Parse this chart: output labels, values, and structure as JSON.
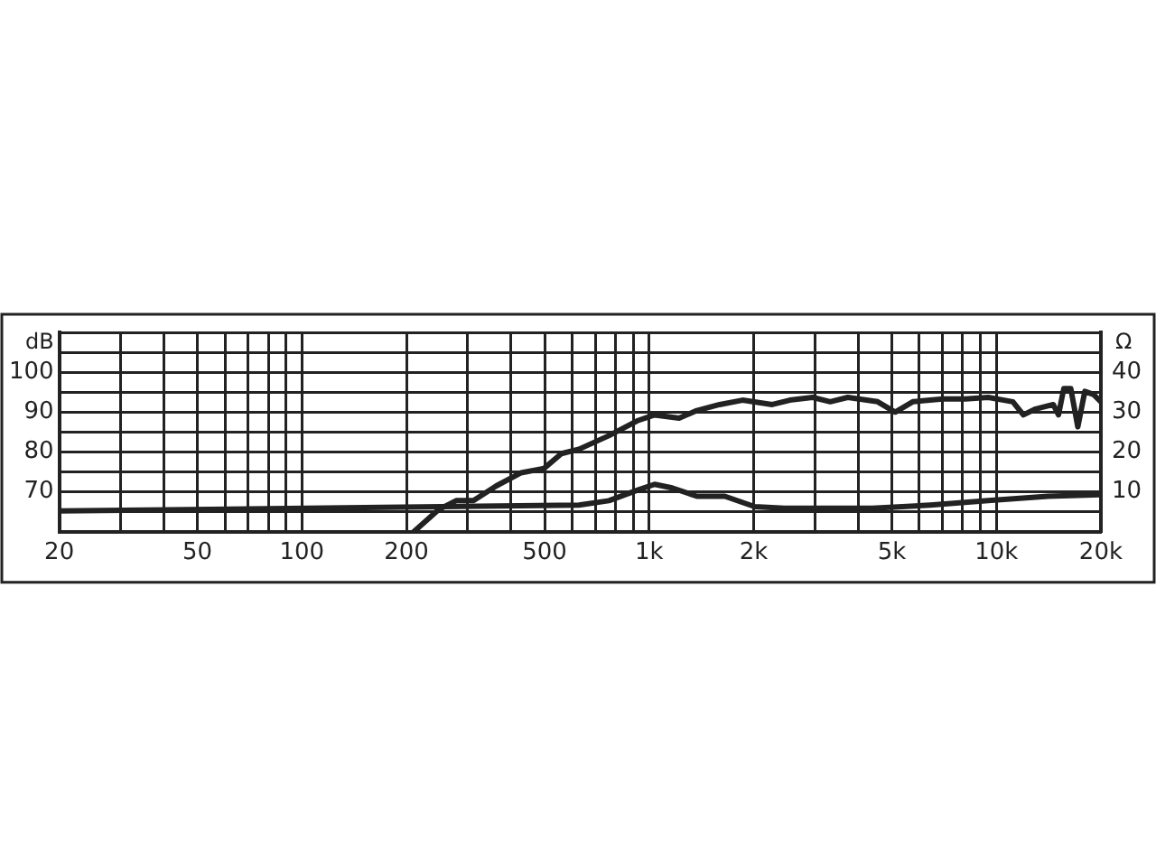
{
  "chart_data": {
    "type": "line",
    "ylabel": "dB",
    "y2label": "Ω",
    "log": "x",
    "grid": true,
    "legend": false,
    "marker": "none",
    "line_style": "solid",
    "xlim": [
      20,
      20000
    ],
    "xticks": [
      20,
      {
        "value": 30,
        "label": null
      },
      {
        "value": 40,
        "label": null
      },
      50,
      {
        "value": 60,
        "label": null
      },
      {
        "value": 70,
        "label": null
      },
      {
        "value": 80,
        "label": null
      },
      {
        "value": 90,
        "label": null
      },
      100,
      200,
      {
        "value": 300,
        "label": null
      },
      {
        "value": 400,
        "label": null
      },
      500,
      {
        "value": 600,
        "label": null
      },
      {
        "value": 700,
        "label": null
      },
      {
        "value": 800,
        "label": null
      },
      {
        "value": 900,
        "label": null
      },
      {
        "value": 1000,
        "label": "1k"
      },
      {
        "value": 2000,
        "label": "2k"
      },
      {
        "value": 3000,
        "label": null
      },
      {
        "value": 4000,
        "label": null
      },
      {
        "value": 5000,
        "label": "5k"
      },
      {
        "value": 6000,
        "label": null
      },
      {
        "value": 7000,
        "label": null
      },
      {
        "value": 8000,
        "label": null
      },
      {
        "value": 9000,
        "label": null
      },
      {
        "value": 10000,
        "label": "10k"
      },
      {
        "value": 20000,
        "label": "20k"
      }
    ],
    "ylim": [
      60,
      110
    ],
    "yticks": [
      {
        "value": 60,
        "label": null
      },
      {
        "value": 65,
        "label": null
      },
      70,
      {
        "value": 75,
        "label": null
      },
      80,
      {
        "value": 85,
        "label": null
      },
      90,
      {
        "value": 95,
        "label": null
      },
      100,
      {
        "value": 105,
        "label": null
      },
      {
        "value": 110,
        "label": null
      }
    ],
    "y2lim": [
      0,
      50
    ],
    "y2ticks": [
      10,
      20,
      30,
      40
    ],
    "series": [
      {
        "color": "#222222",
        "x": [
          210,
          248,
          278,
          312,
          363,
          428,
          498,
          559,
          628,
          766,
          923,
          1037,
          1220,
          1372,
          1596,
          1857,
          2263,
          2542,
          2958,
          3323,
          3734,
          4552,
          5114,
          5746,
          7004,
          8148,
          9480,
          11158,
          11964,
          12982,
          14588,
          15104,
          15642,
          16388,
          17168,
          17988,
          19068,
          20000
        ],
        "values": [
          60,
          65.6,
          67.8,
          67.8,
          71.5,
          74.8,
          75.9,
          79.6,
          80.7,
          84.1,
          87.8,
          89.3,
          88.5,
          90.4,
          91.9,
          93,
          91.9,
          93,
          93.7,
          92.6,
          93.7,
          92.6,
          90,
          92.6,
          93.3,
          93.3,
          93.7,
          92.6,
          89.3,
          90.8,
          91.9,
          89.3,
          95.9,
          95.9,
          86.3,
          95.2,
          94.4,
          92.6
        ]
      },
      {
        "color": "#222222",
        "axis": "y2",
        "x": [
          20,
          628,
          766,
          923,
          1037,
          1165,
          1372,
          1652,
          2014,
          2454,
          4396,
          6456,
          9480,
          14094,
          20000
        ],
        "values": [
          5.2,
          6.7,
          7.8,
          10.4,
          11.9,
          11,
          8.9,
          8.9,
          6.3,
          5.9,
          5.9,
          6.7,
          7.8,
          8.9,
          9.3
        ]
      }
    ]
  }
}
